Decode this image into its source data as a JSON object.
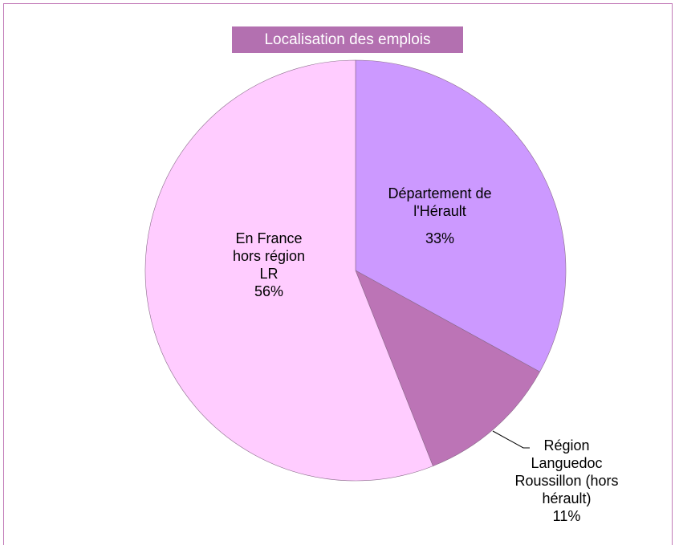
{
  "chart_data": {
    "type": "pie",
    "title": "Localisation des emplois",
    "categories": [
      "Département de l'Hérault",
      "Région Languedoc Roussillon (hors hérault)",
      "En France hors région LR"
    ],
    "values": [
      33,
      11,
      56
    ],
    "value_labels": [
      "33%",
      "11%",
      "56%"
    ],
    "colors": [
      "#cc99ff",
      "#bc74b6",
      "#ffccff"
    ]
  }
}
